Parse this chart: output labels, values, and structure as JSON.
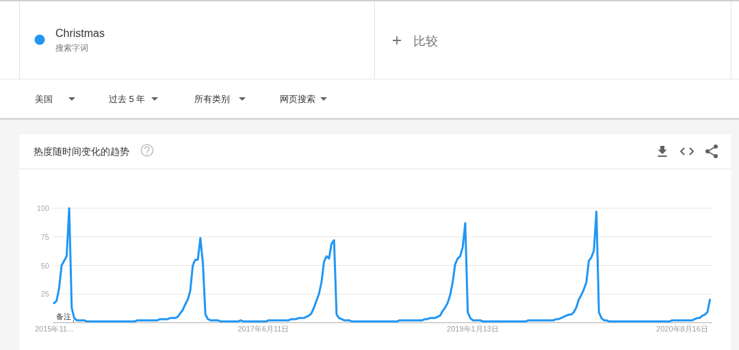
{
  "chart_data": {
    "type": "line",
    "title": "热度随时间变化的趋势",
    "annotations": [
      "搜索字词",
      "比较",
      "美国",
      "过去 5 年",
      "所有类别",
      "网页搜索",
      {
        "text": "备注",
        "x": "2016-01-01"
      }
    ],
    "x": [
      "2015-11-08",
      "2015-11-15",
      "2015-11-22",
      "2015-11-29",
      "2015-12-06",
      "2015-12-13",
      "2015-12-20",
      "2015-12-27",
      "2016-01-03",
      "2016-01-10",
      "2016-01-31",
      "2016-02-07",
      "2016-06-19",
      "2016-06-26",
      "2016-08-21",
      "2016-08-28",
      "2016-09-18",
      "2016-09-25",
      "2016-10-09",
      "2016-10-16",
      "2016-10-23",
      "2016-10-30",
      "2016-11-06",
      "2016-11-13",
      "2016-11-20",
      "2016-11-27",
      "2016-12-04",
      "2016-12-11",
      "2016-12-18",
      "2016-12-25",
      "2017-01-01",
      "2017-01-08",
      "2017-01-15",
      "2017-02-05",
      "2017-02-12",
      "2017-04-02",
      "2017-04-09",
      "2017-04-16",
      "2017-06-18",
      "2017-06-25",
      "2017-08-20",
      "2017-08-27",
      "2017-09-10",
      "2017-09-17",
      "2017-10-01",
      "2017-10-08",
      "2017-10-15",
      "2017-10-22",
      "2017-10-29",
      "2017-11-05",
      "2017-11-12",
      "2017-11-19",
      "2017-11-26",
      "2017-12-03",
      "2017-12-10",
      "2017-12-17",
      "2017-12-24",
      "2017-12-31",
      "2018-01-07",
      "2018-01-14",
      "2018-01-21",
      "2018-02-04",
      "2018-02-11",
      "2018-06-17",
      "2018-06-24",
      "2018-08-26",
      "2018-09-02",
      "2018-09-09",
      "2018-09-16",
      "2018-09-30",
      "2018-10-07",
      "2018-10-14",
      "2018-10-21",
      "2018-10-28",
      "2018-11-04",
      "2018-11-11",
      "2018-11-18",
      "2018-11-25",
      "2018-12-02",
      "2018-12-09",
      "2018-12-16",
      "2018-12-23",
      "2018-12-30",
      "2019-01-06",
      "2019-01-13",
      "2019-02-03",
      "2019-02-10",
      "2019-06-09",
      "2019-06-16",
      "2019-08-25",
      "2019-09-01",
      "2019-09-08",
      "2019-09-15",
      "2019-09-22",
      "2019-09-29",
      "2019-10-06",
      "2019-10-13",
      "2019-10-20",
      "2019-10-27",
      "2019-11-03",
      "2019-11-10",
      "2019-11-17",
      "2019-11-24",
      "2019-12-01",
      "2019-12-08",
      "2019-12-15",
      "2019-12-22",
      "2019-12-29",
      "2020-01-05",
      "2020-01-12",
      "2020-01-19",
      "2020-01-26",
      "2020-07-12",
      "2020-07-19",
      "2020-09-13",
      "2020-09-20",
      "2020-09-27",
      "2020-10-04",
      "2020-10-11",
      "2020-10-18",
      "2020-10-25",
      "2020-11-01"
    ],
    "series": [
      {
        "name": "Christmas",
        "color": "#2196f3",
        "values": [
          17,
          19,
          30,
          50,
          54,
          58,
          100,
          13,
          4,
          2,
          2,
          1,
          1,
          2,
          2,
          3,
          3,
          4,
          4,
          5,
          8,
          11,
          16,
          20,
          28,
          50,
          55,
          55,
          74,
          52,
          7,
          3,
          2,
          2,
          1,
          1,
          2,
          1,
          1,
          2,
          2,
          3,
          3,
          4,
          4,
          5,
          6,
          8,
          13,
          19,
          25,
          35,
          53,
          58,
          56,
          69,
          72,
          7,
          4,
          3,
          2,
          2,
          1,
          1,
          2,
          2,
          3,
          3,
          4,
          4,
          5,
          6,
          10,
          13,
          17,
          24,
          35,
          51,
          56,
          58,
          66,
          87,
          9,
          4,
          2,
          2,
          1,
          1,
          2,
          2,
          3,
          3,
          4,
          5,
          6,
          7,
          7,
          9,
          13,
          20,
          24,
          29,
          35,
          54,
          57,
          63,
          97,
          9,
          4,
          2,
          2,
          1,
          1,
          2,
          2,
          3,
          4,
          4,
          6,
          7,
          9,
          20
        ]
      }
    ],
    "xlim": [
      "2015-11-08",
      "2020-11-01"
    ],
    "xticks": [
      {
        "value": "2015-11-08",
        "label": "2015年11..."
      },
      {
        "value": "2017-06-11",
        "label": "2017年6月11日"
      },
      {
        "value": "2019-01-13",
        "label": "2019年1月13日"
      },
      {
        "value": "2020-08-16",
        "label": "2020年8月16日"
      }
    ],
    "ylim": [
      0,
      100
    ],
    "yticks": [
      25,
      50,
      75,
      100
    ],
    "grid": "y",
    "legend": "top",
    "line_style": "solid"
  }
}
